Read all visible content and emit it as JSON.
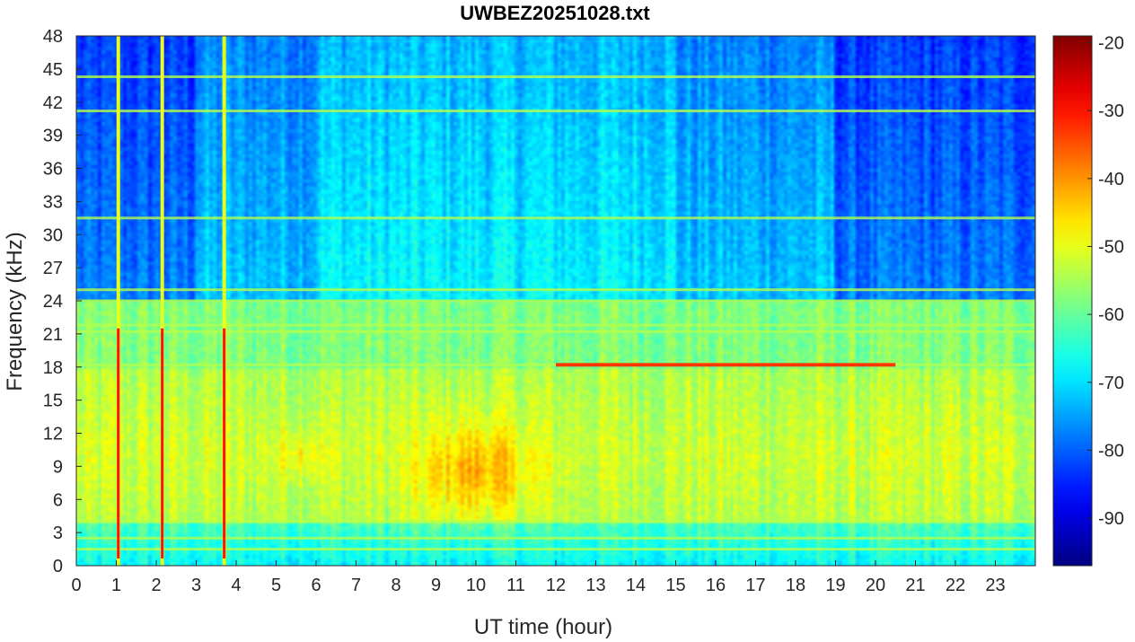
{
  "chart_data": {
    "type": "heatmap",
    "title": "UWBEZ20251028.txt",
    "xlabel": "UT time (hour)",
    "ylabel": "Frequency (kHz)",
    "xlim": [
      0,
      24
    ],
    "ylim": [
      0,
      48
    ],
    "x_ticks": [
      "0",
      "1",
      "2",
      "3",
      "4",
      "5",
      "6",
      "7",
      "8",
      "9",
      "10",
      "11",
      "12",
      "13",
      "14",
      "15",
      "16",
      "17",
      "18",
      "19",
      "20",
      "21",
      "22",
      "23"
    ],
    "y_ticks": [
      "0",
      "3",
      "6",
      "9",
      "12",
      "15",
      "18",
      "21",
      "24",
      "27",
      "30",
      "33",
      "36",
      "39",
      "42",
      "45",
      "48"
    ],
    "colorbar": {
      "colormap": "jet",
      "range": [
        -97,
        -19
      ],
      "ticks": [
        "-20",
        "-30",
        "-40",
        "-50",
        "-60",
        "-70",
        "-80",
        "-90"
      ]
    },
    "features": {
      "background_band_db": [
        {
          "freq_khz": [
            0,
            4
          ],
          "level_db": -68
        },
        {
          "freq_khz": [
            4,
            18
          ],
          "level_db": -52
        },
        {
          "freq_khz": [
            18,
            24
          ],
          "level_db": -58
        },
        {
          "freq_khz": [
            24,
            48
          ],
          "level_db": -72
        }
      ],
      "hot_region": {
        "time_hour": [
          9.0,
          11.0
        ],
        "freq_khz": [
          5,
          12
        ],
        "level_db": -43
      },
      "horizontal_lines_khz": [
        1.5,
        2.5,
        4.0,
        18.2,
        21.2,
        21.8,
        24.0,
        25.0,
        31.5,
        41.2,
        44.3
      ],
      "strong_line": {
        "freq_khz": 18.2,
        "time_hour": [
          12.0,
          20.5
        ],
        "level_db": -33
      },
      "vertical_spikes_hour": [
        1.05,
        2.15,
        3.7
      ]
    }
  }
}
